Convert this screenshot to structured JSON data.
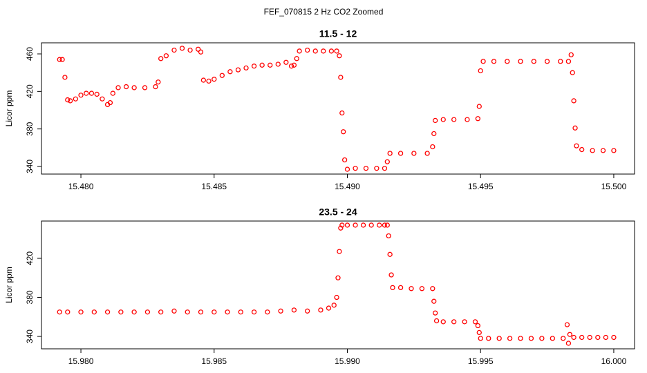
{
  "title": "FEF_070815  2 Hz CO2 Zoomed",
  "chart_data": [
    {
      "type": "scatter",
      "title": "11.5 - 12",
      "y_label": "Licor ppm",
      "x": [
        15.4792,
        15.4793,
        15.4794,
        15.4795,
        15.4796,
        15.4798,
        15.48,
        15.4802,
        15.4804,
        15.4806,
        15.4808,
        15.481,
        15.4811,
        15.4812,
        15.4814,
        15.4817,
        15.482,
        15.4824,
        15.4828,
        15.4829,
        15.483,
        15.4832,
        15.4835,
        15.4838,
        15.4841,
        15.4844,
        15.4845,
        15.4846,
        15.4848,
        15.485,
        15.4853,
        15.4856,
        15.4859,
        15.4862,
        15.4865,
        15.4868,
        15.4871,
        15.4874,
        15.4877,
        15.4879,
        15.488,
        15.4881,
        15.4882,
        15.4885,
        15.4888,
        15.4891,
        15.4894,
        15.4896,
        15.4897,
        15.48975,
        15.4898,
        15.48985,
        15.4899,
        15.49,
        15.4903,
        15.4907,
        15.4911,
        15.4914,
        15.4915,
        15.4916,
        15.492,
        15.4925,
        15.493,
        15.4932,
        15.49325,
        15.4933,
        15.4936,
        15.494,
        15.4945,
        15.4949,
        15.49495,
        15.495,
        15.4951,
        15.4955,
        15.496,
        15.4965,
        15.497,
        15.4975,
        15.498,
        15.4983,
        15.4984,
        15.49845,
        15.4985,
        15.49855,
        15.4986,
        15.4988,
        15.4992,
        15.4996,
        15.5
      ],
      "series": [
        {
          "color": "#ff0000",
          "values": [
            454,
            454,
            435,
            411,
            410,
            412,
            416,
            418,
            418,
            417,
            412,
            406,
            408,
            418,
            424,
            425,
            424,
            424,
            425,
            430,
            455,
            458,
            464,
            466,
            464,
            465,
            462,
            432,
            431,
            433,
            437,
            441,
            443,
            445,
            447,
            448,
            448,
            449,
            451,
            447,
            448,
            455,
            463,
            464,
            463,
            463,
            463,
            463,
            458,
            435,
            397,
            377,
            347,
            337,
            338,
            338,
            338,
            338,
            345,
            354,
            354,
            354,
            354,
            361,
            375,
            389,
            390,
            390,
            390,
            391,
            404,
            442,
            452,
            452,
            452,
            452,
            452,
            452,
            452,
            452,
            459,
            440,
            410,
            381,
            362,
            358,
            357,
            357,
            357
          ]
        }
      ],
      "xlim": [
        15.47852,
        15.50078
      ],
      "xticks": [
        {
          "value": 15.48,
          "label": "15.480"
        },
        {
          "value": 15.485,
          "label": "15.485"
        },
        {
          "value": 15.49,
          "label": "15.490"
        },
        {
          "value": 15.495,
          "label": "15.495"
        },
        {
          "value": 15.5,
          "label": "15.500"
        }
      ],
      "ylim": [
        331.9,
        471.8
      ],
      "yticks": [
        340,
        380,
        420,
        460
      ]
    },
    {
      "type": "scatter",
      "title": "23.5 - 24",
      "y_label": "Licor ppm",
      "x": [
        15.9792,
        15.9795,
        15.98,
        15.9805,
        15.981,
        15.9815,
        15.982,
        15.9825,
        15.983,
        15.9835,
        15.984,
        15.9845,
        15.985,
        15.9855,
        15.986,
        15.9865,
        15.987,
        15.9875,
        15.988,
        15.9885,
        15.989,
        15.9893,
        15.9895,
        15.9896,
        15.98965,
        15.9897,
        15.98975,
        15.9898,
        15.99,
        15.9903,
        15.9906,
        15.9909,
        15.9912,
        15.9914,
        15.9915,
        15.99155,
        15.9916,
        15.99165,
        15.9917,
        15.992,
        15.9924,
        15.9928,
        15.9932,
        15.99325,
        15.9933,
        15.99335,
        15.9936,
        15.994,
        15.9944,
        15.9948,
        15.9949,
        15.99495,
        15.995,
        15.9953,
        15.9957,
        15.9961,
        15.9965,
        15.9969,
        15.9973,
        15.9977,
        15.9981,
        15.99825,
        15.9983,
        15.99835,
        15.9985,
        15.9988,
        15.9991,
        15.9994,
        15.9997,
        16.0
      ],
      "series": [
        {
          "color": "#ff0000",
          "values": [
            365,
            365,
            365,
            365,
            365,
            365,
            365,
            365,
            365,
            366,
            365,
            365,
            365,
            365,
            365,
            365,
            365,
            366,
            367,
            366,
            367,
            369,
            372,
            380,
            400,
            427,
            451,
            454,
            454,
            454,
            454,
            454,
            454,
            454,
            454,
            443,
            424,
            403,
            390,
            390,
            389,
            389,
            389,
            376,
            364,
            356,
            355,
            355,
            355,
            355,
            351,
            344,
            338,
            338,
            338,
            338,
            338,
            338,
            338,
            338,
            338,
            352,
            333,
            342,
            339,
            339,
            339,
            339,
            339,
            339
          ]
        }
      ],
      "xlim": [
        15.97852,
        16.00078
      ],
      "xticks": [
        {
          "value": 15.98,
          "label": "15.980"
        },
        {
          "value": 15.985,
          "label": "15.985"
        },
        {
          "value": 15.99,
          "label": "15.990"
        },
        {
          "value": 15.995,
          "label": "15.995"
        },
        {
          "value": 16.0,
          "label": "16.000"
        }
      ],
      "ylim": [
        327.3,
        458.2
      ],
      "yticks": [
        340,
        380,
        420
      ]
    }
  ]
}
